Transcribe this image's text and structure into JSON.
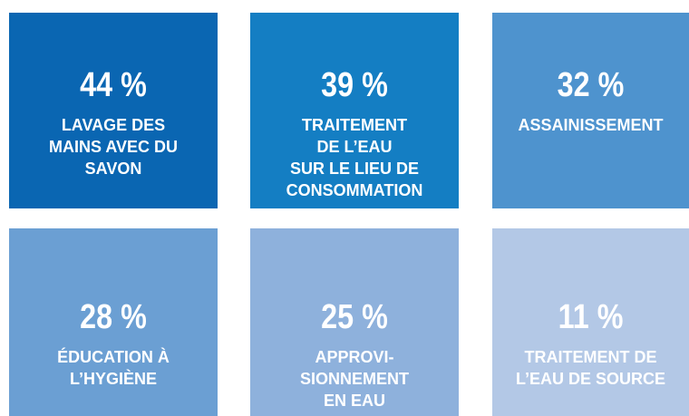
{
  "tiles": [
    {
      "value": "44 %",
      "label": [
        "LAVAGE DES",
        "MAINS AVEC DU",
        "SAVON"
      ]
    },
    {
      "value": "39 %",
      "label": [
        "TRAITEMENT",
        "DE L’EAU",
        "SUR LE LIEU DE",
        "CONSOMMATION"
      ]
    },
    {
      "value": "32 %",
      "label": [
        "ASSAINISSEMENT"
      ]
    },
    {
      "value": "28 %",
      "label": [
        "ÉDUCATION À",
        "L’HYGIÈNE"
      ]
    },
    {
      "value": "25 %",
      "label": [
        "APPROVI-",
        "SIONNEMENT",
        "EN EAU"
      ]
    },
    {
      "value": "11 %",
      "label": [
        "TRAITEMENT DE",
        "L’EAU DE SOURCE"
      ]
    }
  ]
}
